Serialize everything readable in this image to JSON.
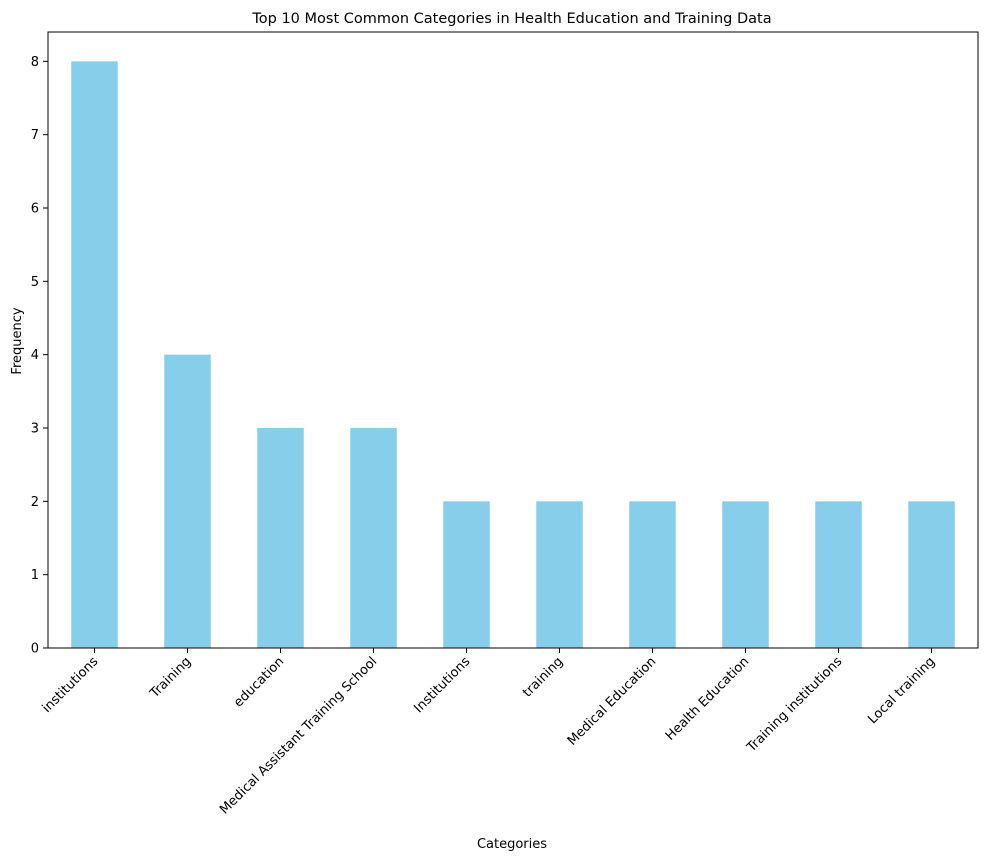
{
  "chart_data": {
    "type": "bar",
    "title": "Top 10 Most Common Categories in Health Education and Training Data",
    "xlabel": "Categories",
    "ylabel": "Frequency",
    "categories": [
      "institutions",
      "Training",
      "education",
      "Medical Assistant Training School",
      "Institutions",
      "training",
      "Medical Education",
      "Health Education",
      "Training institutions",
      "Local training"
    ],
    "values": [
      8,
      4,
      3,
      3,
      2,
      2,
      2,
      2,
      2,
      2
    ],
    "ylim": [
      0,
      8.4
    ],
    "yticks": [
      0,
      1,
      2,
      3,
      4,
      5,
      6,
      7,
      8
    ],
    "bar_color": "#87ceeb",
    "grid": false,
    "legend": "none"
  }
}
